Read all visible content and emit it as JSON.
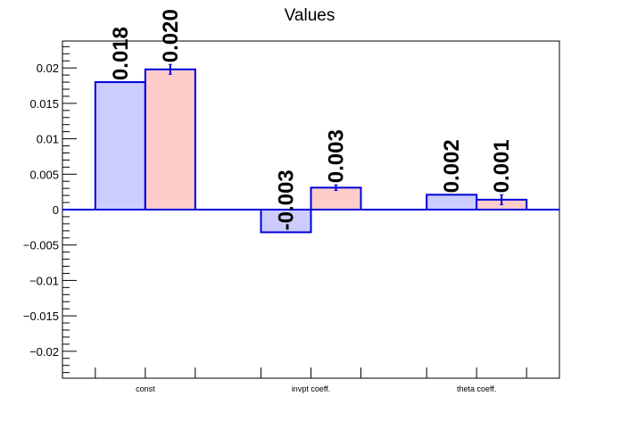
{
  "chart_data": {
    "type": "bar",
    "title": "Values",
    "categories": [
      "const",
      "invpt coeff.",
      "theta coeff."
    ],
    "series": [
      {
        "values": [
          0.018,
          -0.0032,
          0.0021
        ],
        "errors": [
          0.0,
          0.0,
          0.0
        ],
        "labels": [
          "0.018",
          "-0.003",
          "0.002"
        ]
      },
      {
        "values": [
          0.0198,
          0.0031,
          0.0014
        ],
        "errors": [
          0.0007,
          0.0004,
          0.0007
        ],
        "labels": [
          "0.020",
          "0.003",
          "0.001"
        ]
      }
    ],
    "ylim": [
      -0.0238,
      0.0238
    ],
    "y_ticks": [
      -0.02,
      -0.015,
      -0.01,
      -0.005,
      0,
      0.005,
      0.01,
      0.015,
      0.02
    ],
    "y_tick_labels": [
      "−0.02",
      "−0.015",
      "−0.01",
      "−0.005",
      "0",
      "0.005",
      "0.01",
      "0.015",
      "0.02"
    ],
    "colors": {
      "series_fill": [
        "#ccccff",
        "#ffcccc"
      ],
      "bar_stroke": "#0000dd",
      "zero_line": "#0000dd",
      "error_bar": "#0000dd",
      "axis": "#000000"
    },
    "grid": false,
    "legend": "none"
  }
}
